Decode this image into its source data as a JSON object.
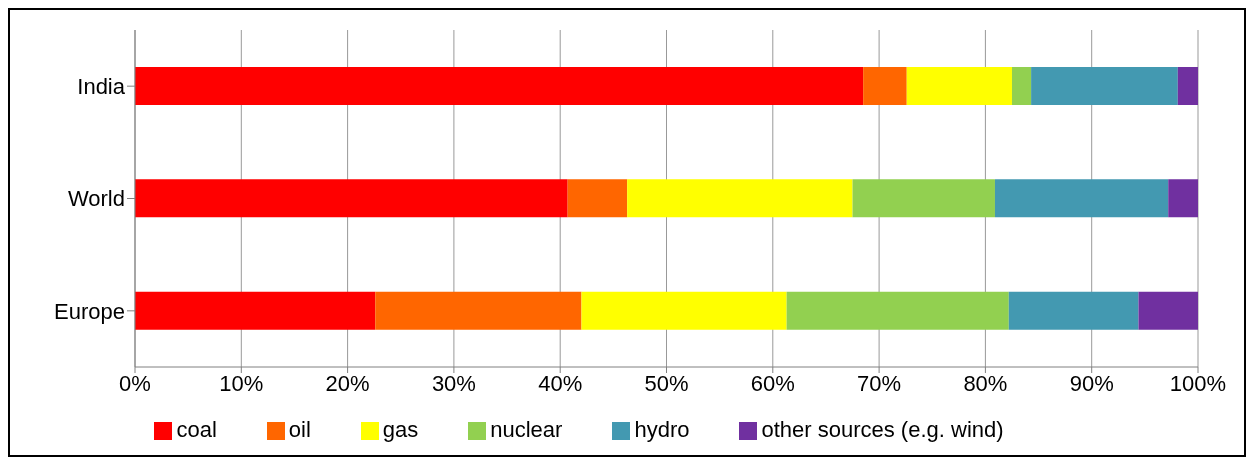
{
  "chart_data": {
    "type": "bar",
    "orientation": "horizontal",
    "stacked": true,
    "categories": [
      "India",
      "World",
      "Europe"
    ],
    "series": [
      {
        "name": "coal",
        "color": "#ff0000",
        "values": [
          68.5,
          40.7,
          22.6
        ]
      },
      {
        "name": "oil",
        "color": "#ff6600",
        "values": [
          4.1,
          5.6,
          19.4
        ]
      },
      {
        "name": "gas",
        "color": "#ffff00",
        "values": [
          9.9,
          21.2,
          19.3
        ]
      },
      {
        "name": "nuclear",
        "color": "#92d050",
        "values": [
          1.8,
          13.4,
          20.9
        ]
      },
      {
        "name": "hydro",
        "color": "#4399b1",
        "values": [
          13.8,
          16.3,
          12.2
        ]
      },
      {
        "name": "other sources (e.g. wind)",
        "color": "#7030a0",
        "values": [
          1.9,
          2.8,
          5.6
        ]
      }
    ],
    "xlim": [
      0,
      100
    ],
    "xticks": [
      {
        "value": 0,
        "label": "0%"
      },
      {
        "value": 10,
        "label": "10%"
      },
      {
        "value": 20,
        "label": "20%"
      },
      {
        "value": 30,
        "label": "30%"
      },
      {
        "value": 40,
        "label": "40%"
      },
      {
        "value": 50,
        "label": "50%"
      },
      {
        "value": 60,
        "label": "60%"
      },
      {
        "value": 70,
        "label": "70%"
      },
      {
        "value": 80,
        "label": "80%"
      },
      {
        "value": 90,
        "label": "90%"
      },
      {
        "value": 100,
        "label": "100%"
      }
    ],
    "grid": "x",
    "legend": "bottom"
  }
}
